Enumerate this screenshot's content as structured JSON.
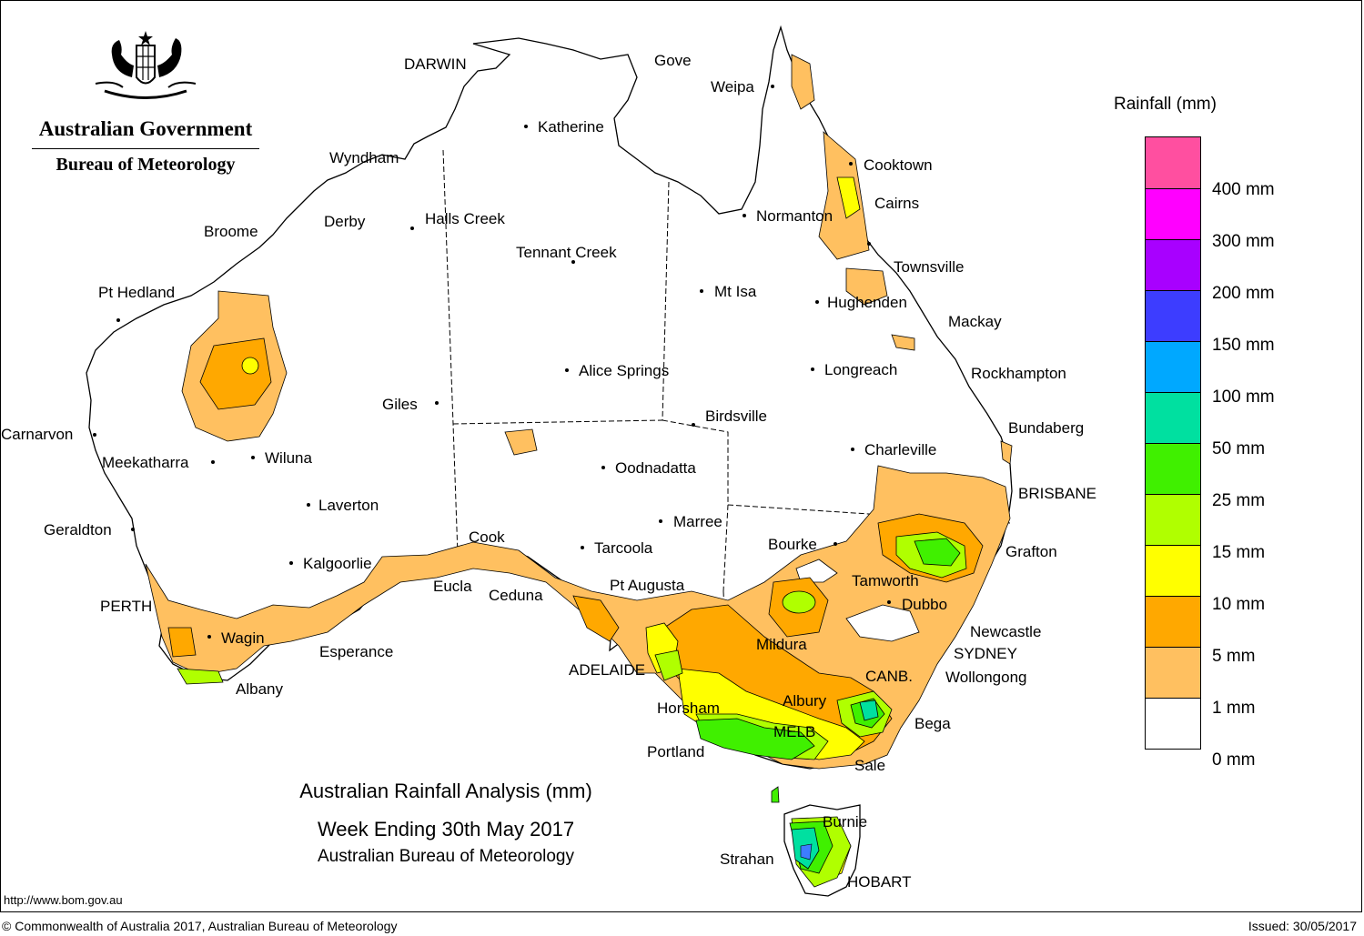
{
  "logo": {
    "government": "Australian Government",
    "bureau": "Bureau of Meteorology",
    "emblem": "coat-of-arms-emblem"
  },
  "title": {
    "line1": "Australian Rainfall Analysis (mm)",
    "line2": "Week Ending 30th May 2017",
    "line3": "Australian Bureau of Meteorology"
  },
  "legend": {
    "title": "Rainfall (mm)",
    "swatches": [
      "#ff4fa0",
      "#ff00ff",
      "#a800ff",
      "#3d3dff",
      "#00a8ff",
      "#00e0a0",
      "#40f000",
      "#b0ff00",
      "#ffff00",
      "#ffa800",
      "#ffc060",
      "#ffffff"
    ],
    "labels": [
      "400 mm",
      "300 mm",
      "200 mm",
      "150 mm",
      "100 mm",
      "50 mm",
      "25 mm",
      "15 mm",
      "10 mm",
      "5 mm",
      "1 mm",
      "0 mm"
    ]
  },
  "cities": [
    {
      "name": "DARWIN"
    },
    {
      "name": "Gove"
    },
    {
      "name": "Weipa"
    },
    {
      "name": "Katherine"
    },
    {
      "name": "Wyndham"
    },
    {
      "name": "Cooktown"
    },
    {
      "name": "Cairns"
    },
    {
      "name": "Normanton"
    },
    {
      "name": "Derby"
    },
    {
      "name": "Halls Creek"
    },
    {
      "name": "Broome"
    },
    {
      "name": "Tennant Creek"
    },
    {
      "name": "Townsville"
    },
    {
      "name": "Pt Hedland"
    },
    {
      "name": "Mt Isa"
    },
    {
      "name": "Hughenden"
    },
    {
      "name": "Mackay"
    },
    {
      "name": "Alice Springs"
    },
    {
      "name": "Longreach"
    },
    {
      "name": "Rockhampton"
    },
    {
      "name": "Giles"
    },
    {
      "name": "Birdsville"
    },
    {
      "name": "Carnarvon"
    },
    {
      "name": "Bundaberg"
    },
    {
      "name": "Charleville"
    },
    {
      "name": "Meekatharra"
    },
    {
      "name": "Wiluna"
    },
    {
      "name": "Oodnadatta"
    },
    {
      "name": "BRISBANE"
    },
    {
      "name": "Laverton"
    },
    {
      "name": "Marree"
    },
    {
      "name": "Geraldton"
    },
    {
      "name": "Cook"
    },
    {
      "name": "Bourke"
    },
    {
      "name": "Tarcoola"
    },
    {
      "name": "Grafton"
    },
    {
      "name": "Kalgoorlie"
    },
    {
      "name": "Tamworth"
    },
    {
      "name": "Eucla"
    },
    {
      "name": "Pt Augusta"
    },
    {
      "name": "Ceduna"
    },
    {
      "name": "PERTH"
    },
    {
      "name": "Dubbo"
    },
    {
      "name": "Newcastle"
    },
    {
      "name": "Wagin"
    },
    {
      "name": "Mildura"
    },
    {
      "name": "Esperance"
    },
    {
      "name": "SYDNEY"
    },
    {
      "name": "ADELAIDE"
    },
    {
      "name": "CANB."
    },
    {
      "name": "Wollongong"
    },
    {
      "name": "Albany"
    },
    {
      "name": "Albury"
    },
    {
      "name": "Horsham"
    },
    {
      "name": "Bega"
    },
    {
      "name": "MELB"
    },
    {
      "name": "Portland"
    },
    {
      "name": "Sale"
    },
    {
      "name": "Burnie"
    },
    {
      "name": "Strahan"
    },
    {
      "name": "HOBART"
    }
  ],
  "footer": {
    "url": "http://www.bom.gov.au",
    "copyright": "© Commonwealth of Australia 2017, Australian Bureau of Meteorology",
    "issued": "Issued: 30/05/2017"
  }
}
